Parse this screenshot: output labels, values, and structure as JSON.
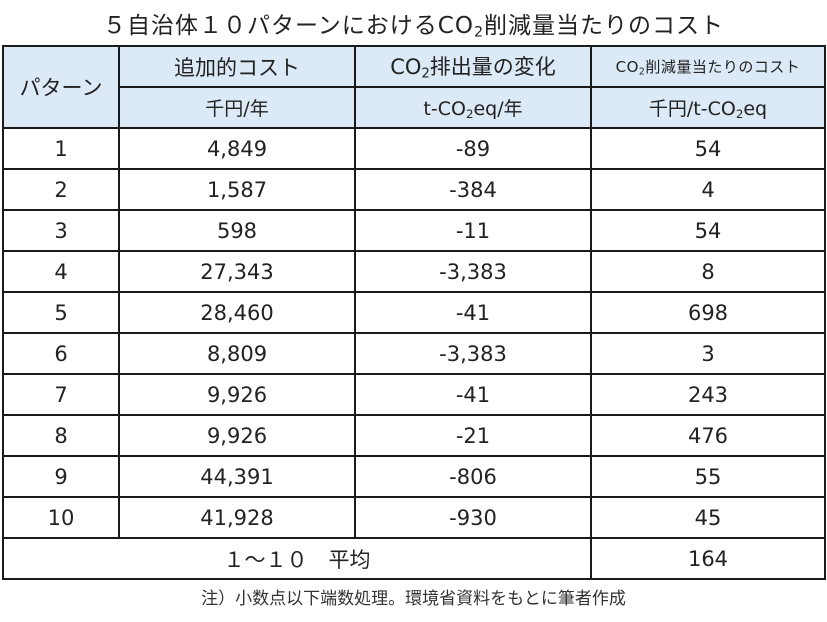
{
  "title": {
    "prefix": "５自治体１０パターンにおけるCO",
    "sub": "2",
    "suffix": "削減量当たりのコスト"
  },
  "headers": {
    "pattern": "パターン",
    "col1": {
      "label": "追加的コスト",
      "unit": "千円/年"
    },
    "col2": {
      "label_prefix": "CO",
      "label_sub": "2",
      "label_suffix": "排出量の変化",
      "unit_prefix": "t-CO",
      "unit_sub": "2",
      "unit_suffix": "eq/年"
    },
    "col3": {
      "label_prefix": "CO",
      "label_sub": "2",
      "label_suffix": "削減量当たりのコスト",
      "unit_prefix": "千円/t-CO",
      "unit_sub": "2",
      "unit_suffix": "eq"
    }
  },
  "rows": [
    {
      "pattern": "1",
      "cost": "4,849",
      "co2_change": "-89",
      "cost_per_co2": "54"
    },
    {
      "pattern": "2",
      "cost": "1,587",
      "co2_change": "-384",
      "cost_per_co2": "4"
    },
    {
      "pattern": "3",
      "cost": "598",
      "co2_change": "-11",
      "cost_per_co2": "54"
    },
    {
      "pattern": "4",
      "cost": "27,343",
      "co2_change": "-3,383",
      "cost_per_co2": "8"
    },
    {
      "pattern": "5",
      "cost": "28,460",
      "co2_change": "-41",
      "cost_per_co2": "698"
    },
    {
      "pattern": "6",
      "cost": "8,809",
      "co2_change": "-3,383",
      "cost_per_co2": "3"
    },
    {
      "pattern": "7",
      "cost": "9,926",
      "co2_change": "-41",
      "cost_per_co2": "243"
    },
    {
      "pattern": "8",
      "cost": "9,926",
      "co2_change": "-21",
      "cost_per_co2": "476"
    },
    {
      "pattern": "9",
      "cost": "44,391",
      "co2_change": "-806",
      "cost_per_co2": "55"
    },
    {
      "pattern": "10",
      "cost": "41,928",
      "co2_change": "-930",
      "cost_per_co2": "45"
    }
  ],
  "average": {
    "label": "１～１０　平均",
    "value": "164"
  },
  "note": "注）小数点以下端数処理。環境省資料をもとに筆者作成",
  "colors": {
    "header_bg": "#dce9f6",
    "border": "#1a1a1a"
  }
}
